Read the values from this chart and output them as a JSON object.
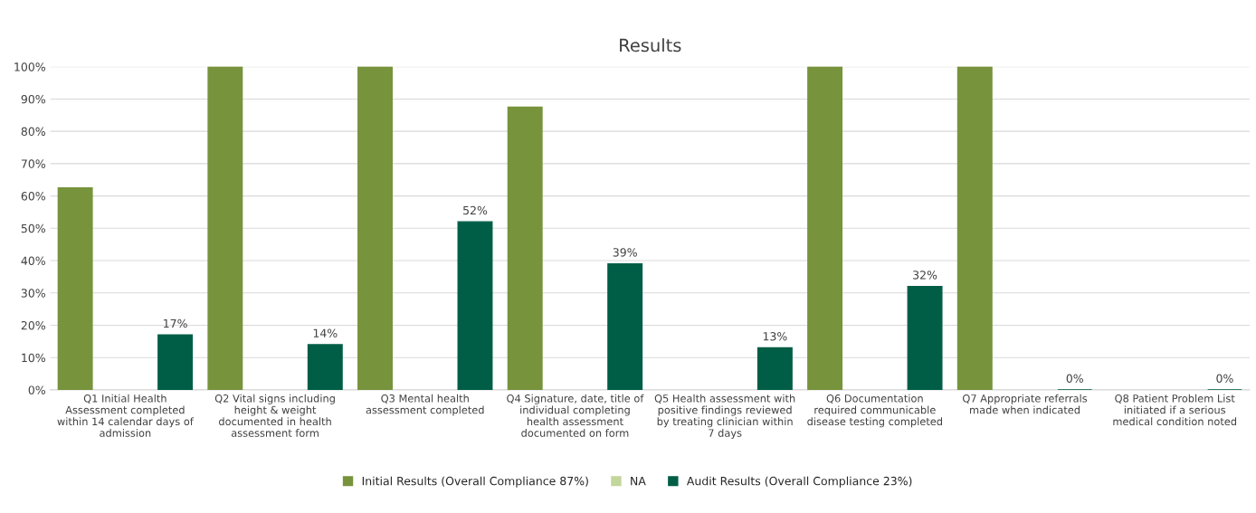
{
  "chart_data": {
    "type": "bar",
    "title": "Results",
    "categories": [
      "Q1 Initial Health\nAssessment completed\nwithin 14 calendar days of\nadmission",
      "Q2 Vital signs including\nheight & weight\ndocumented in health\nassessment form",
      "Q3 Mental health\nassessment completed",
      "Q4 Signature, date, title of\nindividual completing\nhealth assessment\ndocumented on form",
      "Q5 Health assessment with\npositive findings reviewed\nby treating clinician within\n7 days",
      "Q6 Documentation\nrequired communicable\ndisease testing completed",
      "Q7 Appropriate referrals\nmade when indicated",
      "Q8 Patient Problem List\ninitiated if a serious\nmedical condition noted"
    ],
    "series": [
      {
        "name": "Initial Results (Overall Compliance 87%)",
        "color": "#77933c",
        "values": [
          62.5,
          100,
          100,
          87.5,
          null,
          100,
          100,
          null
        ]
      },
      {
        "name": "NA",
        "color": "#c3d69b",
        "values": [
          null,
          null,
          null,
          null,
          null,
          null,
          null,
          null
        ]
      },
      {
        "name": "Audit Results (Overall Compliance 23%)",
        "color": "#005e46",
        "values": [
          17,
          14,
          52,
          39,
          13,
          32,
          0,
          0
        ],
        "value_labels": [
          "17%",
          "14%",
          "52%",
          "39%",
          "13%",
          "32%",
          "0%",
          "0%"
        ]
      }
    ],
    "ylim": [
      0,
      100
    ],
    "yticks": [
      {
        "value": 0,
        "label": "0%"
      },
      {
        "value": 10,
        "label": "10%"
      },
      {
        "value": 20,
        "label": "20%"
      },
      {
        "value": 30,
        "label": "30%"
      },
      {
        "value": 40,
        "label": "40%"
      },
      {
        "value": 50,
        "label": "50%"
      },
      {
        "value": 60,
        "label": "60%"
      },
      {
        "value": 70,
        "label": "70%"
      },
      {
        "value": 80,
        "label": "80%"
      },
      {
        "value": 90,
        "label": "90%"
      },
      {
        "value": 100,
        "label": "100%"
      }
    ],
    "grid": "y",
    "legend": "bottom"
  }
}
